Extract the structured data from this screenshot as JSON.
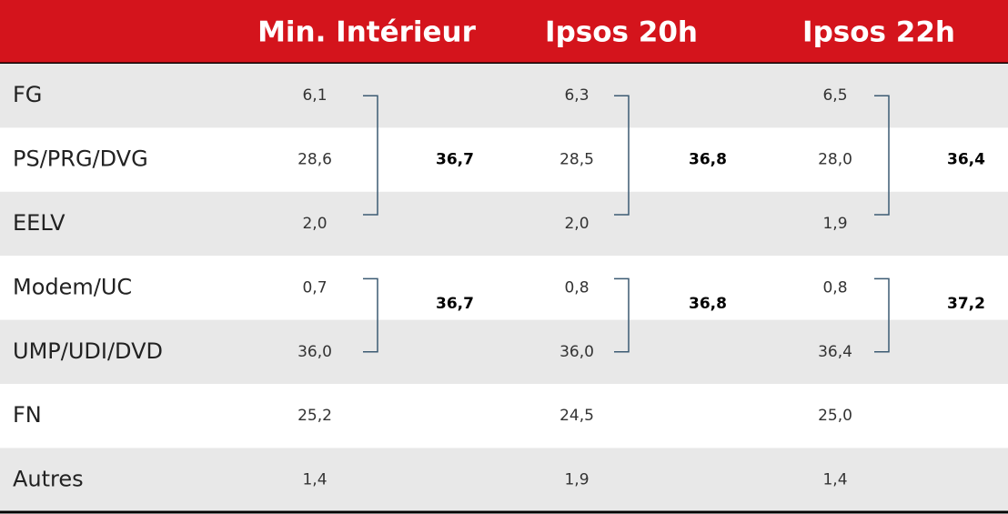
{
  "table": {
    "headers": [
      "Min. Intérieur",
      "Ipsos 20h",
      "Ipsos 22h"
    ],
    "rows": [
      {
        "label": "FG",
        "values": [
          "6,1",
          "6,3",
          "6,5"
        ]
      },
      {
        "label": "PS/PRG/DVG",
        "values": [
          "28,6",
          "28,5",
          "28,0"
        ]
      },
      {
        "label": "EELV",
        "values": [
          "2,0",
          "2,0",
          "1,9"
        ]
      },
      {
        "label": "Modem/UC",
        "values": [
          "0,7",
          "0,8",
          "0,8"
        ]
      },
      {
        "label": "UMP/UDI/DVD",
        "values": [
          "36,0",
          "36,0",
          "36,4"
        ]
      },
      {
        "label": "FN",
        "values": [
          "25,2",
          "24,5",
          "25,0"
        ]
      },
      {
        "label": "Autres",
        "values": [
          "1,4",
          "1,9",
          "1,4"
        ]
      }
    ],
    "group_totals": [
      [
        "36,7",
        "36,8",
        "36,4"
      ],
      [
        "36,7",
        "36,8",
        "37,2"
      ]
    ]
  }
}
